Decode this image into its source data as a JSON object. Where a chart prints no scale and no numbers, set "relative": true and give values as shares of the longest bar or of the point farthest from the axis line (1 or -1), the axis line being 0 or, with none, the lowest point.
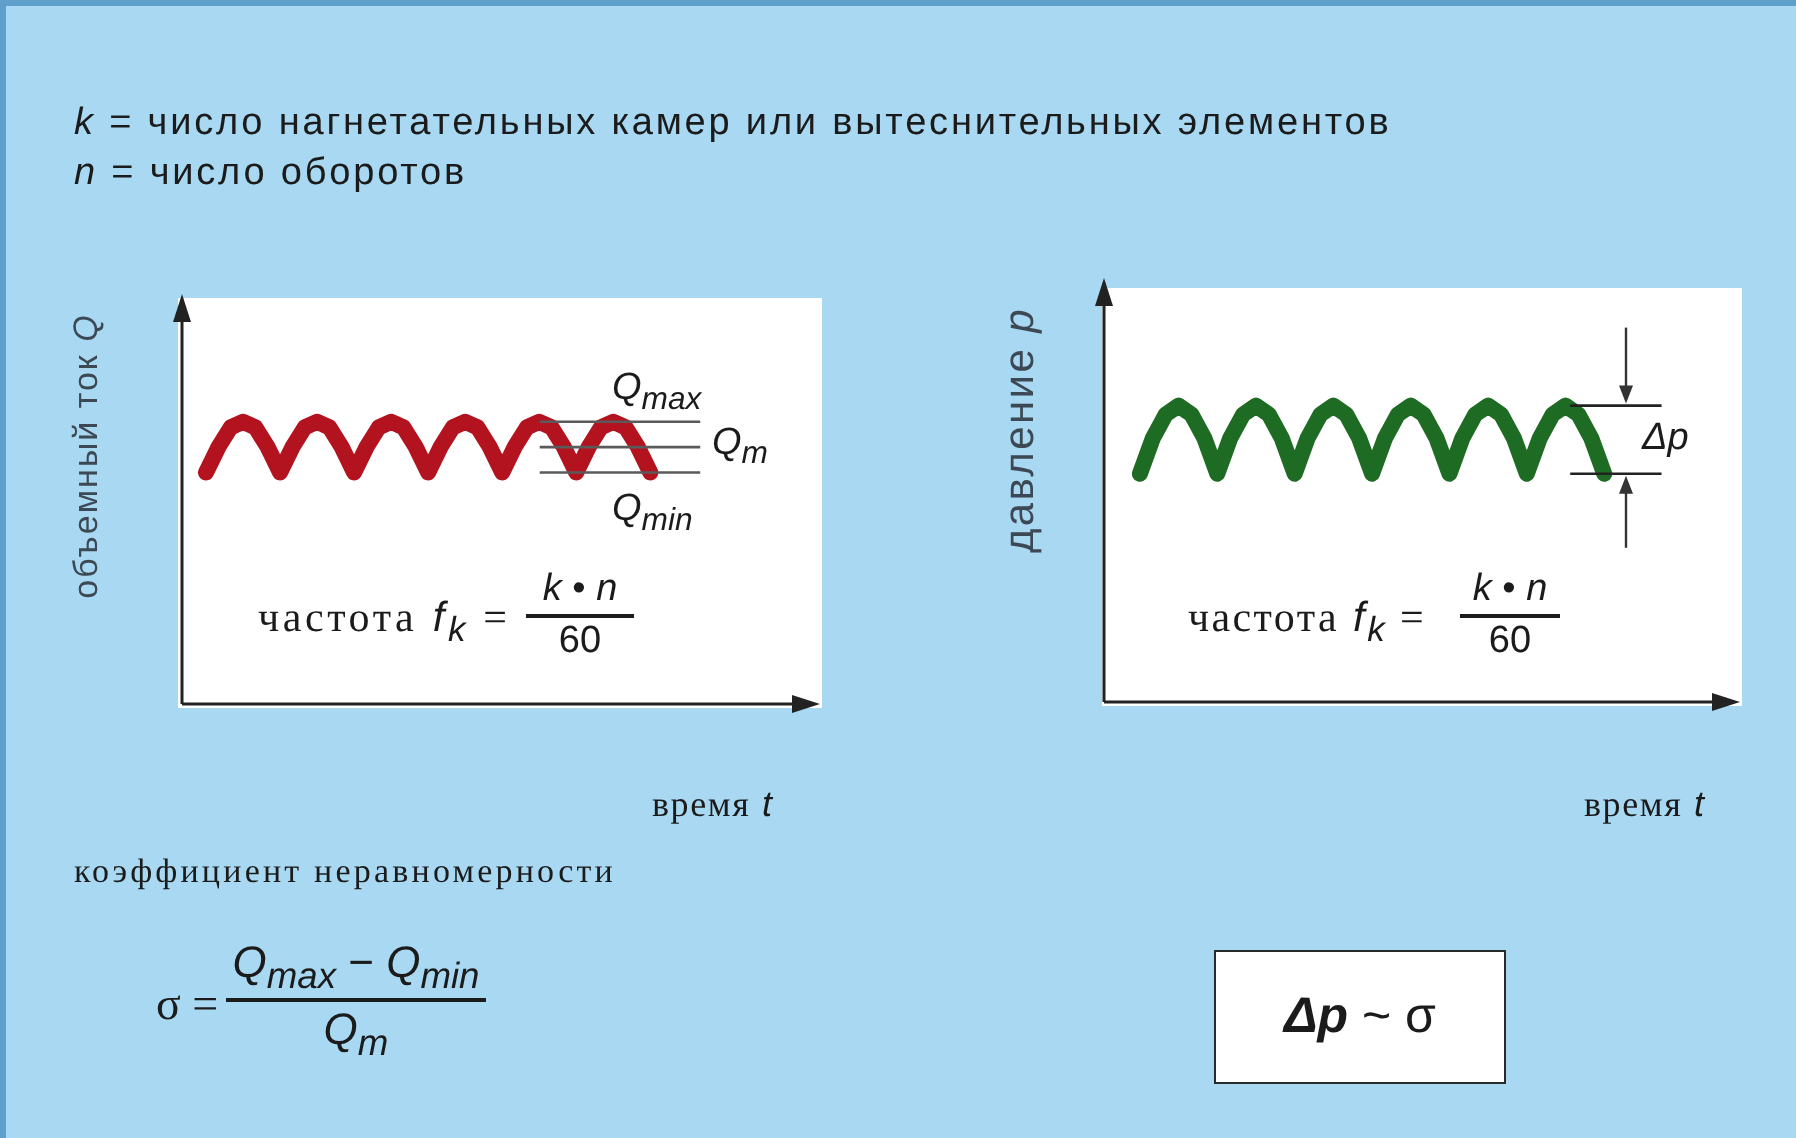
{
  "chart_data": [
    {
      "type": "line",
      "xlabel": "время t",
      "ylabel": "объемный ток Q",
      "relative": true,
      "marker": "none",
      "color": "#b3121f",
      "categories": [
        null,
        null,
        null,
        null,
        null,
        null,
        null,
        null,
        null,
        null,
        null,
        null,
        null,
        null,
        null,
        null,
        null,
        null,
        null,
        null,
        null,
        null,
        null,
        null,
        null,
        null,
        null,
        null,
        null,
        null,
        null,
        null,
        null,
        null,
        null,
        null,
        null
      ],
      "values": [
        0.82,
        0.91,
        0.98,
        1,
        0.98,
        0.91,
        0.82,
        0.91,
        0.98,
        1,
        0.98,
        0.91,
        0.82,
        0.91,
        0.98,
        1,
        0.98,
        0.91,
        0.82,
        0.91,
        0.98,
        1,
        0.98,
        0.91,
        0.82,
        0.91,
        0.98,
        1,
        0.98,
        0.91,
        0.82,
        0.91,
        0.98,
        1,
        0.98,
        0.91,
        0.82
      ],
      "ref_lines": [
        {
          "axis": "y",
          "value": 1,
          "label": "Q$_{max}$",
          "color": "#5a5a5a"
        },
        {
          "axis": "y",
          "value": 0.91,
          "label": "Q$_{m}$",
          "color": "#5a5a5a"
        },
        {
          "axis": "y",
          "value": 0.82,
          "label": "Q$_{min}$",
          "color": "#5a5a5a"
        }
      ],
      "annotations": [
        "k = число нагнетательных камер или вытеснительных элементов",
        "n = число оборотов",
        "частота f$_{k}$ =",
        "k • n",
        "60",
        "коэффициент неравномерности",
        "σ =",
        "Q$_{max}$ − Q$_{min}$",
        "Q$_{m}$"
      ]
    },
    {
      "type": "line",
      "xlabel": "время t",
      "ylabel": "давление p",
      "relative": true,
      "marker": "none",
      "color": "#1e6b23",
      "categories": [
        null,
        null,
        null,
        null,
        null,
        null,
        null,
        null,
        null,
        null,
        null,
        null,
        null,
        null,
        null,
        null,
        null,
        null,
        null,
        null,
        null,
        null,
        null,
        null,
        null,
        null,
        null,
        null,
        null,
        null,
        null,
        null,
        null,
        null,
        null,
        null,
        null
      ],
      "values": [
        0.77,
        0.89,
        0.97,
        1,
        0.97,
        0.89,
        0.77,
        0.89,
        0.97,
        1,
        0.97,
        0.89,
        0.77,
        0.89,
        0.97,
        1,
        0.97,
        0.89,
        0.77,
        0.89,
        0.97,
        1,
        0.97,
        0.89,
        0.77,
        0.89,
        0.97,
        1,
        0.97,
        0.89,
        0.77,
        0.89,
        0.97,
        1,
        0.97,
        0.89,
        0.77
      ],
      "ref_lines": [
        {
          "axis": "y",
          "value": 1,
          "color": "#222222"
        },
        {
          "axis": "y",
          "value": 0.77,
          "color": "#222222"
        }
      ],
      "annotations": [
        "частота f$_{k}$ =",
        "k • n",
        "60",
        "Δp ~ σ",
        "Δp"
      ]
    }
  ]
}
